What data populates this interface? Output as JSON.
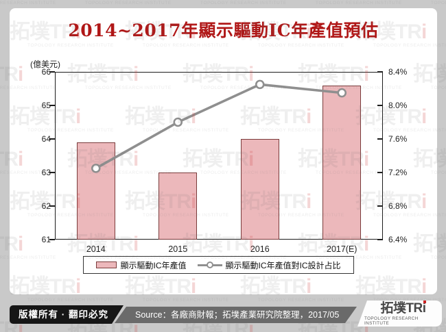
{
  "page": {
    "title": "2014~2017年顯示驅動IC年產值預估"
  },
  "chart_data": {
    "type": "bar",
    "combo": "bar+line",
    "title": "2014~2017年顯示驅動IC年產值預估",
    "categories": [
      "2014",
      "2015",
      "2016",
      "2017(E)"
    ],
    "series": [
      {
        "name": "顯示驅動IC年產值",
        "type": "bar",
        "axis": "left",
        "unit": "億美元",
        "values": [
          63.9,
          63.0,
          64.0,
          65.6
        ]
      },
      {
        "name": "顯示驅動IC年產值對IC設計占比",
        "type": "line",
        "axis": "right",
        "unit": "%",
        "values": [
          7.25,
          7.8,
          8.25,
          8.15
        ]
      }
    ],
    "left_axis": {
      "label": "(億美元)",
      "min": 61,
      "max": 66,
      "tick_labels": [
        "66",
        "65",
        "64",
        "63",
        "62",
        "61"
      ]
    },
    "right_axis": {
      "min": 6.4,
      "max": 8.4,
      "tick_labels": [
        "8.4%",
        "8.0%",
        "7.6%",
        "7.2%",
        "6.8%",
        "6.4%"
      ]
    },
    "grid": false,
    "legend_position": "bottom"
  },
  "legend": {
    "bar_label": "顯示驅動IC年產值",
    "line_label": "顯示驅動IC年產值對IC設計占比"
  },
  "footer": {
    "copyright": "版權所有 · 翻印必究",
    "source": "Source：各廠商財報；拓墣產業研究院整理，2017/05",
    "logo": {
      "cn": "拓墣",
      "latin": "TRi",
      "caption": "TOPOLOGY RESEARCH INSTITUTE"
    }
  },
  "watermark": {
    "big": "拓墣TR",
    "big_i": "i",
    "small": "TOPOLOGY RESEARCH INSTITUTE"
  },
  "colors": {
    "title": "#b01717",
    "bar_fill": "#ecb8bb",
    "bar_border": "#7a3b3b",
    "line": "#8f8f8f",
    "marker_fill": "#ffffff",
    "frame": "#1c1c1c",
    "page_bg": "#c9c9c9",
    "footer_black": "#161616",
    "footer_gray": "#6a6a6a",
    "logo_red": "#cc2222"
  }
}
